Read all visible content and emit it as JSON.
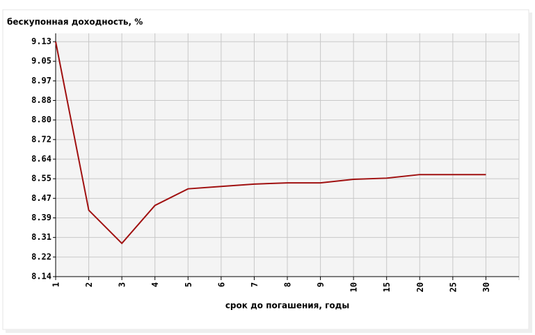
{
  "chart_data": {
    "type": "line",
    "ylabel": "бескупонная доходность, %",
    "xlabel": "срок до погашения, годы",
    "categories": [
      "1",
      "2",
      "3",
      "4",
      "5",
      "6",
      "7",
      "8",
      "9",
      "10",
      "15",
      "20",
      "25",
      "30"
    ],
    "series": [
      {
        "name": "бескупонная доходность",
        "color": "#a01010",
        "values": [
          9.13,
          8.42,
          8.28,
          8.44,
          8.51,
          8.52,
          8.53,
          8.535,
          8.535,
          8.55,
          8.555,
          8.57,
          8.57,
          8.57
        ]
      }
    ],
    "ylim": [
      8.14,
      9.13
    ],
    "yticks": [
      {
        "value": 8.14,
        "label": "8.14"
      },
      {
        "value": 8.2225,
        "label": "8.22"
      },
      {
        "value": 8.305,
        "label": "8.31"
      },
      {
        "value": 8.3875,
        "label": "8.39"
      },
      {
        "value": 8.47,
        "label": "8.47"
      },
      {
        "value": 8.5525,
        "label": "8.55"
      },
      {
        "value": 8.635,
        "label": "8.64"
      },
      {
        "value": 8.7175,
        "label": "8.72"
      },
      {
        "value": 8.8,
        "label": "8.80"
      },
      {
        "value": 8.8825,
        "label": "8.88"
      },
      {
        "value": 8.965,
        "label": "8.97"
      },
      {
        "value": 9.0475,
        "label": "9.05"
      },
      {
        "value": 9.13,
        "label": "9.13"
      }
    ],
    "grid": true
  }
}
